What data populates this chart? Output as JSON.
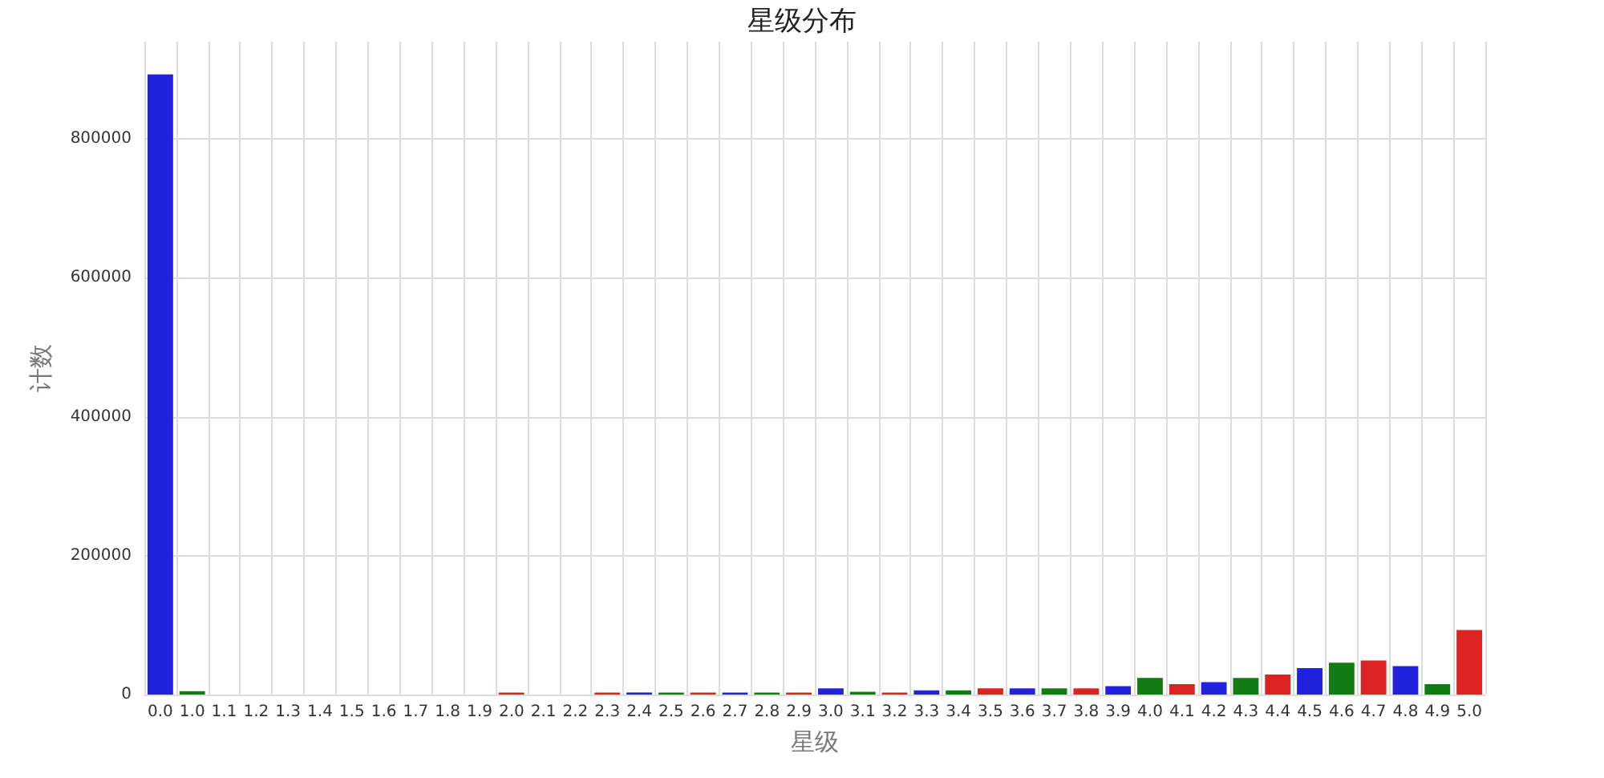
{
  "chart_data": {
    "type": "bar",
    "title": "星级分布",
    "xlabel": "星级",
    "ylabel": "计数",
    "categories": [
      "0.0",
      "1.0",
      "1.1",
      "1.2",
      "1.3",
      "1.4",
      "1.5",
      "1.6",
      "1.7",
      "1.8",
      "1.9",
      "2.0",
      "2.1",
      "2.2",
      "2.3",
      "2.4",
      "2.5",
      "2.6",
      "2.7",
      "2.8",
      "2.9",
      "3.0",
      "3.1",
      "3.2",
      "3.3",
      "3.4",
      "3.5",
      "3.6",
      "3.7",
      "3.8",
      "3.9",
      "4.0",
      "4.1",
      "4.2",
      "4.3",
      "4.4",
      "4.5",
      "4.6",
      "4.7",
      "4.8",
      "4.9",
      "5.0"
    ],
    "values": [
      893000,
      5000,
      0,
      0,
      0,
      0,
      0,
      0,
      0,
      0,
      0,
      3000,
      0,
      0,
      3000,
      3000,
      3000,
      3000,
      3000,
      3000,
      3000,
      9000,
      4000,
      3000,
      6000,
      6000,
      9000,
      9000,
      9000,
      9000,
      12000,
      24000,
      15000,
      18000,
      24000,
      29000,
      38000,
      46000,
      49000,
      41000,
      15000,
      93000
    ],
    "colors": [
      "#2222dd",
      "#137b13",
      "#dd2222",
      "#2222dd",
      "#137b13",
      "#dd2222",
      "#2222dd",
      "#137b13",
      "#dd2222",
      "#2222dd",
      "#137b13",
      "#dd2222",
      "#2222dd",
      "#137b13",
      "#dd2222",
      "#2222dd",
      "#137b13",
      "#dd2222",
      "#2222dd",
      "#137b13",
      "#dd2222",
      "#2222dd",
      "#137b13",
      "#dd2222",
      "#2222dd",
      "#137b13",
      "#dd2222",
      "#2222dd",
      "#137b13",
      "#dd2222",
      "#2222dd",
      "#137b13",
      "#dd2222",
      "#2222dd",
      "#137b13",
      "#dd2222",
      "#2222dd",
      "#137b13",
      "#dd2222",
      "#2222dd",
      "#137b13",
      "#dd2222"
    ],
    "ylim": [
      0,
      940000
    ],
    "yticks": [
      0,
      200000,
      400000,
      600000,
      800000
    ],
    "grid": true
  }
}
